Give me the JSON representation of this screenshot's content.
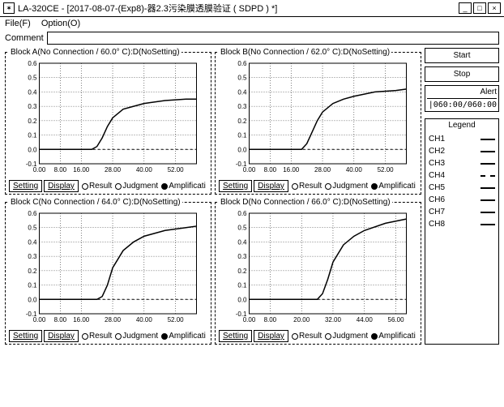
{
  "window": {
    "title": "LA-320CE - [2017-08-07-(Exp8)-器2.3污染膜透膜验证 ( SDPD ) *]"
  },
  "menu": {
    "file": "File(F)",
    "option": "Option(O)"
  },
  "comment_label": "Comment",
  "comment_value": "",
  "side": {
    "start": "Start",
    "stop": "Stop",
    "alert_label": "Alert",
    "alert_value": "|060:00/060:00"
  },
  "toolbar": {
    "setting": "Setting",
    "display": "Display",
    "result": "Result",
    "judgment": "Judgment",
    "amplificati": "Amplificati"
  },
  "blocks": [
    {
      "title": "Block A(No Connection / 60.0° C):D(NoSetting)",
      "ylim": [
        -0.1,
        0.6
      ],
      "ytick_step": 0.1,
      "xlim": [
        0,
        60
      ],
      "xticks": [
        0,
        8,
        16,
        28,
        40,
        52
      ],
      "grid_color": "#000000",
      "background": "#ffffff",
      "series": [
        {
          "color": "#000000",
          "dashed": false,
          "width": 1.5,
          "points": [
            [
              0,
              0.0
            ],
            [
              8,
              0.0
            ],
            [
              16,
              0.0
            ],
            [
              20,
              0.0
            ],
            [
              22,
              0.02
            ],
            [
              24,
              0.08
            ],
            [
              26,
              0.16
            ],
            [
              28,
              0.22
            ],
            [
              32,
              0.28
            ],
            [
              36,
              0.3
            ],
            [
              40,
              0.32
            ],
            [
              48,
              0.34
            ],
            [
              56,
              0.35
            ],
            [
              60,
              0.35
            ]
          ]
        },
        {
          "color": "#000000",
          "dashed": true,
          "width": 1,
          "points": [
            [
              0,
              0.0
            ],
            [
              60,
              0.0
            ]
          ]
        }
      ]
    },
    {
      "title": "Block B(No Connection / 62.0° C):D(NoSetting)",
      "ylim": [
        -0.1,
        0.6
      ],
      "ytick_step": 0.1,
      "xlim": [
        0,
        60
      ],
      "xticks": [
        0,
        8,
        16,
        28,
        40,
        52
      ],
      "grid_color": "#000000",
      "background": "#ffffff",
      "series": [
        {
          "color": "#000000",
          "dashed": false,
          "width": 1.5,
          "points": [
            [
              0,
              0.0
            ],
            [
              16,
              0.0
            ],
            [
              20,
              0.0
            ],
            [
              22,
              0.04
            ],
            [
              24,
              0.12
            ],
            [
              26,
              0.2
            ],
            [
              28,
              0.26
            ],
            [
              32,
              0.32
            ],
            [
              36,
              0.35
            ],
            [
              40,
              0.37
            ],
            [
              48,
              0.4
            ],
            [
              56,
              0.41
            ],
            [
              60,
              0.42
            ]
          ]
        },
        {
          "color": "#000000",
          "dashed": true,
          "width": 1,
          "points": [
            [
              0,
              0.0
            ],
            [
              60,
              0.0
            ]
          ]
        }
      ]
    },
    {
      "title": "Block C(No Connection / 64.0° C):D(NoSetting)",
      "ylim": [
        -0.1,
        0.6
      ],
      "ytick_step": 0.1,
      "xlim": [
        0,
        60
      ],
      "xticks": [
        0,
        8,
        16,
        28,
        40,
        52
      ],
      "grid_color": "#000000",
      "background": "#ffffff",
      "series": [
        {
          "color": "#000000",
          "dashed": false,
          "width": 1.5,
          "points": [
            [
              0,
              0.0
            ],
            [
              16,
              0.0
            ],
            [
              22,
              0.0
            ],
            [
              24,
              0.02
            ],
            [
              26,
              0.1
            ],
            [
              28,
              0.22
            ],
            [
              32,
              0.34
            ],
            [
              36,
              0.4
            ],
            [
              40,
              0.44
            ],
            [
              48,
              0.48
            ],
            [
              56,
              0.5
            ],
            [
              60,
              0.51
            ]
          ]
        },
        {
          "color": "#000000",
          "dashed": true,
          "width": 1,
          "points": [
            [
              0,
              0.0
            ],
            [
              60,
              0.0
            ]
          ]
        }
      ]
    },
    {
      "title": "Block D(No Connection / 66.0° C):D(NoSetting)",
      "ylim": [
        -0.1,
        0.6
      ],
      "ytick_step": 0.1,
      "xlim": [
        0,
        60
      ],
      "xticks": [
        0,
        8,
        20,
        32,
        44,
        56
      ],
      "grid_color": "#000000",
      "background": "#ffffff",
      "series": [
        {
          "color": "#000000",
          "dashed": false,
          "width": 1.5,
          "points": [
            [
              0,
              0.0
            ],
            [
              20,
              0.0
            ],
            [
              26,
              0.0
            ],
            [
              28,
              0.04
            ],
            [
              30,
              0.14
            ],
            [
              32,
              0.26
            ],
            [
              36,
              0.38
            ],
            [
              40,
              0.44
            ],
            [
              44,
              0.48
            ],
            [
              52,
              0.53
            ],
            [
              60,
              0.56
            ]
          ]
        },
        {
          "color": "#000000",
          "dashed": true,
          "width": 1,
          "points": [
            [
              0,
              0.0
            ],
            [
              60,
              0.0
            ]
          ]
        }
      ]
    }
  ],
  "legend": {
    "title": "Legend",
    "items": [
      {
        "label": "CH1",
        "dashed": false
      },
      {
        "label": "CH2",
        "dashed": false
      },
      {
        "label": "CH3",
        "dashed": false
      },
      {
        "label": "CH4",
        "dashed": true
      },
      {
        "label": "CH5",
        "dashed": false
      },
      {
        "label": "CH6",
        "dashed": false
      },
      {
        "label": "CH7",
        "dashed": false
      },
      {
        "label": "CH8",
        "dashed": false
      }
    ]
  }
}
